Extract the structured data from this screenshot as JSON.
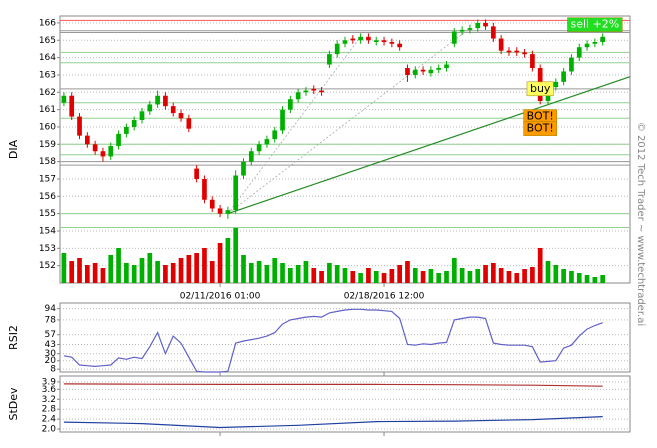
{
  "chart_data": [
    {
      "type": "candlestick",
      "ylabel": "DIA",
      "categories": [
        null,
        null,
        null,
        null,
        null,
        null,
        null,
        null,
        null,
        null,
        null,
        null,
        null,
        null,
        null,
        null,
        null,
        null,
        null,
        null,
        "02/11/2016 01:00",
        null,
        null,
        null,
        null,
        null,
        null,
        null,
        null,
        null,
        null,
        null,
        null,
        null,
        null,
        null,
        null,
        null,
        null,
        null,
        null,
        "02/18/2016 12:00",
        null,
        null,
        null,
        null,
        null,
        null,
        null,
        null,
        null,
        null,
        null,
        null,
        null,
        null,
        null,
        null,
        null,
        null,
        null,
        null,
        null,
        null,
        null,
        null,
        null,
        null,
        null,
        null
      ],
      "open": [
        161.4,
        161.8,
        160.6,
        159.5,
        159.0,
        158.6,
        158.3,
        158.9,
        159.6,
        160.0,
        160.4,
        160.9,
        161.3,
        161.8,
        161.2,
        160.8,
        160.5,
        157.6,
        157.0,
        155.8,
        155.3,
        155.0,
        155.2,
        157.2,
        158.0,
        158.6,
        159.0,
        159.3,
        159.8,
        161.0,
        161.6,
        162.0,
        162.2,
        162.1,
        163.6,
        164.2,
        164.8,
        165.1,
        165.0,
        165.2,
        164.9,
        165.0,
        164.9,
        164.8,
        163.4,
        163.0,
        163.3,
        163.1,
        163.3,
        163.4,
        164.8,
        165.5,
        165.6,
        165.7,
        166.0,
        165.8,
        165.1,
        164.4,
        164.4,
        164.3,
        164.2,
        163.4,
        161.5,
        162.3,
        162.6,
        163.2,
        164.0,
        164.6,
        164.8,
        164.9
      ],
      "high": [
        162.0,
        162.0,
        160.8,
        159.7,
        159.2,
        158.8,
        159.1,
        159.8,
        160.2,
        160.6,
        161.1,
        161.5,
        162.1,
        162.0,
        161.4,
        161.0,
        160.7,
        157.8,
        157.2,
        156.0,
        155.5,
        155.4,
        157.5,
        158.2,
        158.8,
        159.2,
        159.5,
        160.0,
        161.2,
        161.8,
        162.2,
        162.3,
        162.4,
        162.3,
        164.4,
        165.0,
        165.2,
        165.3,
        165.4,
        165.4,
        165.2,
        165.2,
        165.1,
        165.0,
        163.6,
        163.5,
        163.5,
        163.5,
        163.6,
        163.8,
        165.7,
        165.8,
        165.9,
        166.2,
        166.2,
        166.0,
        165.3,
        164.6,
        164.6,
        164.5,
        164.4,
        163.6,
        162.5,
        162.8,
        163.4,
        164.2,
        164.8,
        165.0,
        165.1,
        165.4
      ],
      "low": [
        161.2,
        160.4,
        159.3,
        158.8,
        158.4,
        158.0,
        158.1,
        158.7,
        159.4,
        159.8,
        160.2,
        160.7,
        161.1,
        161.0,
        160.6,
        160.3,
        159.7,
        156.8,
        155.6,
        155.1,
        154.8,
        154.7,
        155.0,
        157.0,
        157.8,
        158.4,
        158.8,
        159.1,
        159.6,
        160.8,
        161.4,
        161.8,
        161.9,
        161.8,
        163.4,
        164.0,
        164.6,
        164.8,
        164.8,
        164.8,
        164.7,
        164.7,
        164.6,
        164.4,
        162.6,
        162.8,
        163.0,
        162.9,
        163.1,
        163.2,
        164.6,
        165.3,
        165.4,
        165.5,
        165.6,
        164.9,
        164.2,
        164.1,
        164.1,
        164.0,
        163.2,
        161.3,
        161.3,
        162.1,
        162.4,
        163.0,
        163.8,
        164.4,
        164.6,
        164.7
      ],
      "close": [
        161.8,
        160.6,
        159.5,
        159.0,
        158.6,
        158.3,
        158.9,
        159.6,
        160.0,
        160.4,
        160.9,
        161.3,
        161.8,
        161.2,
        160.8,
        160.5,
        159.9,
        157.0,
        155.8,
        155.3,
        155.0,
        155.2,
        157.2,
        158.0,
        158.6,
        159.0,
        159.3,
        159.8,
        161.0,
        161.6,
        162.0,
        162.1,
        162.1,
        162.0,
        164.2,
        164.8,
        165.0,
        165.0,
        165.2,
        165.0,
        165.0,
        164.9,
        164.8,
        164.6,
        163.0,
        163.3,
        163.2,
        163.3,
        163.4,
        163.6,
        165.5,
        165.6,
        165.7,
        166.0,
        165.8,
        165.1,
        164.4,
        164.3,
        164.3,
        164.2,
        163.4,
        161.5,
        162.3,
        162.6,
        163.2,
        164.0,
        164.6,
        164.8,
        164.9,
        165.2
      ],
      "volume": [
        30,
        22,
        25,
        18,
        20,
        15,
        28,
        35,
        20,
        18,
        25,
        30,
        22,
        18,
        20,
        25,
        28,
        30,
        35,
        22,
        40,
        45,
        55,
        28,
        20,
        22,
        18,
        25,
        20,
        15,
        18,
        22,
        15,
        12,
        20,
        18,
        15,
        12,
        10,
        15,
        12,
        10,
        14,
        18,
        22,
        15,
        12,
        14,
        10,
        12,
        25,
        15,
        12,
        14,
        18,
        20,
        15,
        12,
        10,
        14,
        16,
        35,
        22,
        18,
        14,
        12,
        10,
        8,
        6,
        8
      ],
      "volume_lim": [
        0,
        100
      ],
      "up_color": "#00b000",
      "down_color": "#e00000",
      "xlim": [
        -0.5,
        72.5
      ],
      "ylim": [
        151,
        166.4
      ],
      "yticks": [
        152,
        153,
        154,
        155,
        156,
        157,
        158,
        159,
        160,
        161,
        162,
        163,
        164,
        165,
        166
      ],
      "grid": true,
      "levels": [
        {
          "price": 166.15,
          "color": "#ff5050"
        },
        {
          "price": 165.55,
          "color": "#999999"
        },
        {
          "price": 165.45,
          "color": "#999999"
        },
        {
          "price": 164.3,
          "color": "#90d090"
        },
        {
          "price": 163.7,
          "color": "#90d090"
        },
        {
          "price": 162.2,
          "color": "#999999"
        },
        {
          "price": 161.4,
          "color": "#90d090"
        },
        {
          "price": 160.5,
          "color": "#90d090"
        },
        {
          "price": 159.0,
          "color": "#90d090"
        },
        {
          "price": 158.4,
          "color": "#90d090"
        },
        {
          "price": 158.0,
          "color": "#999999"
        },
        {
          "price": 157.8,
          "color": "#999999"
        },
        {
          "price": 155.0,
          "color": "#90d090"
        },
        {
          "price": 154.2,
          "color": "#90d090"
        }
      ],
      "trendlines": [
        {
          "from": [
            21,
            155.0
          ],
          "to": [
            72.5,
            162.9
          ],
          "color": "#228b22",
          "dashed": false
        },
        {
          "from": [
            21,
            155.0
          ],
          "to": [
            52,
            165.7
          ],
          "color": "#aaaaaa",
          "dashed": true
        },
        {
          "from": [
            21,
            155.0
          ],
          "to": [
            38,
            165.2
          ],
          "color": "#aaaaaa",
          "dashed": true
        }
      ],
      "annotations": [
        {
          "text": "buy",
          "index": 61,
          "price": 162.2,
          "color": "#ffff60",
          "text_color": "#000000"
        },
        {
          "text": "sell +2%",
          "index": 68,
          "price": 165.9,
          "color": "#22dd22",
          "text_color": "#ffffff"
        },
        {
          "text": "BOT!",
          "index": 61,
          "price": 160.6,
          "color": "#ff9900",
          "text_color": "#000000"
        },
        {
          "text": "BOT!",
          "index": 61,
          "price": 159.9,
          "color": "#ff9900",
          "text_color": "#000000"
        }
      ]
    },
    {
      "type": "line",
      "ylabel": "RSI2",
      "xlim": [
        -0.5,
        72.5
      ],
      "ylim": [
        4,
        102
      ],
      "yticks": [
        8,
        20,
        30,
        43,
        57,
        78,
        94
      ],
      "grid": true,
      "series": [
        {
          "color": "#6060c8",
          "values": [
            27,
            25,
            14,
            13,
            12,
            13,
            14,
            24,
            22,
            25,
            23,
            40,
            60,
            30,
            55,
            45,
            25,
            5,
            4,
            4,
            4,
            5,
            45,
            48,
            50,
            52,
            55,
            60,
            72,
            78,
            80,
            82,
            83,
            82,
            88,
            90,
            92,
            93,
            93,
            92,
            92,
            91,
            90,
            80,
            43,
            42,
            44,
            43,
            45,
            46,
            78,
            80,
            82,
            82,
            80,
            45,
            43,
            42,
            42,
            42,
            40,
            18,
            19,
            20,
            38,
            42,
            55,
            65,
            70,
            74
          ]
        }
      ]
    },
    {
      "type": "line",
      "ylabel": "StDev",
      "xlim": [
        -0.5,
        72.5
      ],
      "ylim": [
        1.88,
        4.14
      ],
      "x": [
        0,
        10,
        20,
        30,
        40,
        50,
        60,
        69
      ],
      "yticks": [
        {
          "value": 2,
          "label": "2.0"
        },
        2.4,
        2.8,
        3.2,
        3.6,
        3.9
      ],
      "grid": true,
      "series": [
        {
          "color": "#b03030",
          "values": [
            3.82,
            3.81,
            3.8,
            3.8,
            3.8,
            3.79,
            3.77,
            3.73
          ]
        },
        {
          "color": "#2040a0",
          "values": [
            2.28,
            2.22,
            2.06,
            2.15,
            2.3,
            2.32,
            2.38,
            2.5
          ]
        }
      ]
    }
  ],
  "credit": "© 2012 Tech Trader ~ www.techtrader.ai"
}
